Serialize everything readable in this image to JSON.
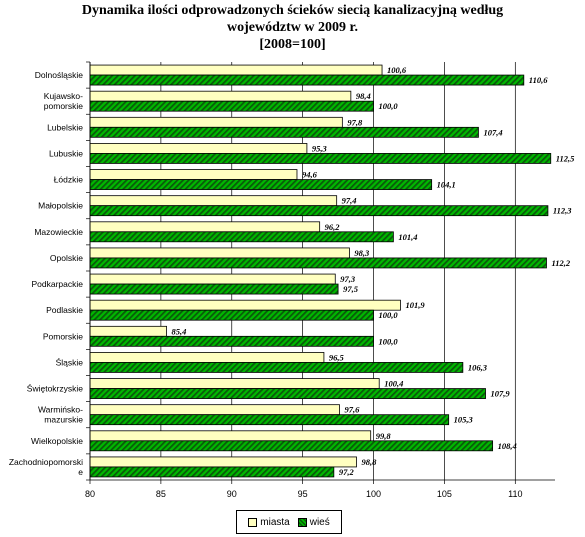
{
  "title_lines": [
    "Dynamika ilości odprowadzonych ścieków siecią kanalizacyjną według",
    "województw w 2009 r.",
    "[2008=100]"
  ],
  "chart_data": {
    "type": "bar",
    "orientation": "horizontal",
    "title": "Dynamika ilości odprowadzonych ścieków siecią kanalizacyjną według województw w 2009 r. [2008=100]",
    "categories": [
      "Dolnośląskie",
      "Kujawsko-pomorskie",
      "Lubelskie",
      "Lubuskie",
      "Łódzkie",
      "Małopolskie",
      "Mazowieckie",
      "Opolskie",
      "Podkarpackie",
      "Podlaskie",
      "Pomorskie",
      "Śląskie",
      "Świętokrzyskie",
      "Warmińsko-mazurskie",
      "Wielkopolskie",
      "Zachodniopomorskie"
    ],
    "category_lines": [
      [
        "Dolnośląskie"
      ],
      [
        "Kujawsko-",
        "pomorskie"
      ],
      [
        "Lubelskie"
      ],
      [
        "Lubuskie"
      ],
      [
        "Łódzkie"
      ],
      [
        "Małopolskie"
      ],
      [
        "Mazowieckie"
      ],
      [
        "Opolskie"
      ],
      [
        "Podkarpackie"
      ],
      [
        "Podlaskie"
      ],
      [
        "Pomorskie"
      ],
      [
        "Śląskie"
      ],
      [
        "Świętokrzyskie"
      ],
      [
        "Warmińsko-",
        "mazurskie"
      ],
      [
        "Wielkopolskie"
      ],
      [
        "Zachodniopomorski",
        "e"
      ]
    ],
    "series": [
      {
        "name": "miasta",
        "color": "#ffffc0",
        "values": [
          100.6,
          98.4,
          97.8,
          95.3,
          94.6,
          97.4,
          96.2,
          98.3,
          97.3,
          101.9,
          85.4,
          96.5,
          100.4,
          97.6,
          99.8,
          98.8
        ],
        "labels": [
          "100,6",
          "98,4",
          "97,8",
          "95,3",
          "94,6",
          "97,4",
          "96,2",
          "98,3",
          "97,3",
          "101,9",
          "85,4",
          "96,5",
          "100,4",
          "97,6",
          "99,8",
          "98,8"
        ]
      },
      {
        "name": "wieś",
        "color": "#00b800",
        "hatch_color": "#0a5a0a",
        "values": [
          110.6,
          100.0,
          107.4,
          112.5,
          104.1,
          112.3,
          101.4,
          112.2,
          97.5,
          100.0,
          100.0,
          106.3,
          107.9,
          105.3,
          108.4,
          97.2
        ],
        "labels": [
          "110,6",
          "100,0",
          "107,4",
          "112,5",
          "104,1",
          "112,3",
          "101,4",
          "112,2",
          "97,5",
          "100,0",
          "100,0",
          "106,3",
          "107,9",
          "105,3",
          "108,4",
          "97,2"
        ]
      }
    ],
    "xlim": [
      80,
      112.8
    ],
    "xticks": [
      80,
      85,
      90,
      95,
      100,
      105,
      110
    ],
    "grid": "vertical",
    "legend_position": "bottom"
  }
}
